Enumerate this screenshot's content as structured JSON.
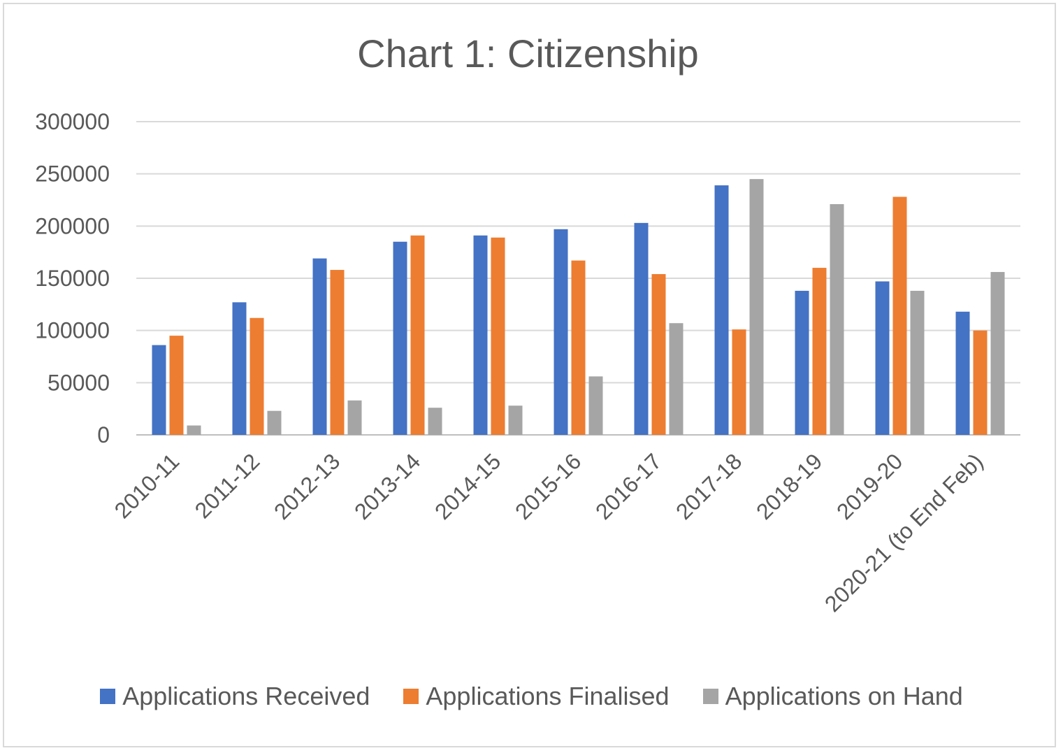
{
  "chart_data": {
    "type": "bar",
    "title": "Chart 1: Citizenship",
    "xlabel": "",
    "ylabel": "",
    "ylim": [
      0,
      300000
    ],
    "yticks": [
      0,
      50000,
      100000,
      150000,
      200000,
      250000,
      300000
    ],
    "grid": true,
    "legend_position": "bottom",
    "categories": [
      "2010-11",
      "2011-12",
      "2012-13",
      "2013-14",
      "2014-15",
      "2015-16",
      "2016-17",
      "2017-18",
      "2018-19",
      "2019-20",
      "2020-21 (to End Feb)"
    ],
    "series": [
      {
        "name": "Applications Received",
        "color": "#4472c4",
        "values": [
          86000,
          127000,
          169000,
          185000,
          191000,
          197000,
          203000,
          239000,
          138000,
          147000,
          118000
        ]
      },
      {
        "name": "Applications Finalised",
        "color": "#ed7d31",
        "values": [
          95000,
          112000,
          158000,
          191000,
          189000,
          167000,
          154000,
          101000,
          160000,
          228000,
          100000
        ]
      },
      {
        "name": "Applications on Hand",
        "color": "#a5a5a5",
        "values": [
          9000,
          23000,
          33000,
          26000,
          28000,
          56000,
          107000,
          245000,
          221000,
          138000,
          156000
        ]
      }
    ]
  }
}
